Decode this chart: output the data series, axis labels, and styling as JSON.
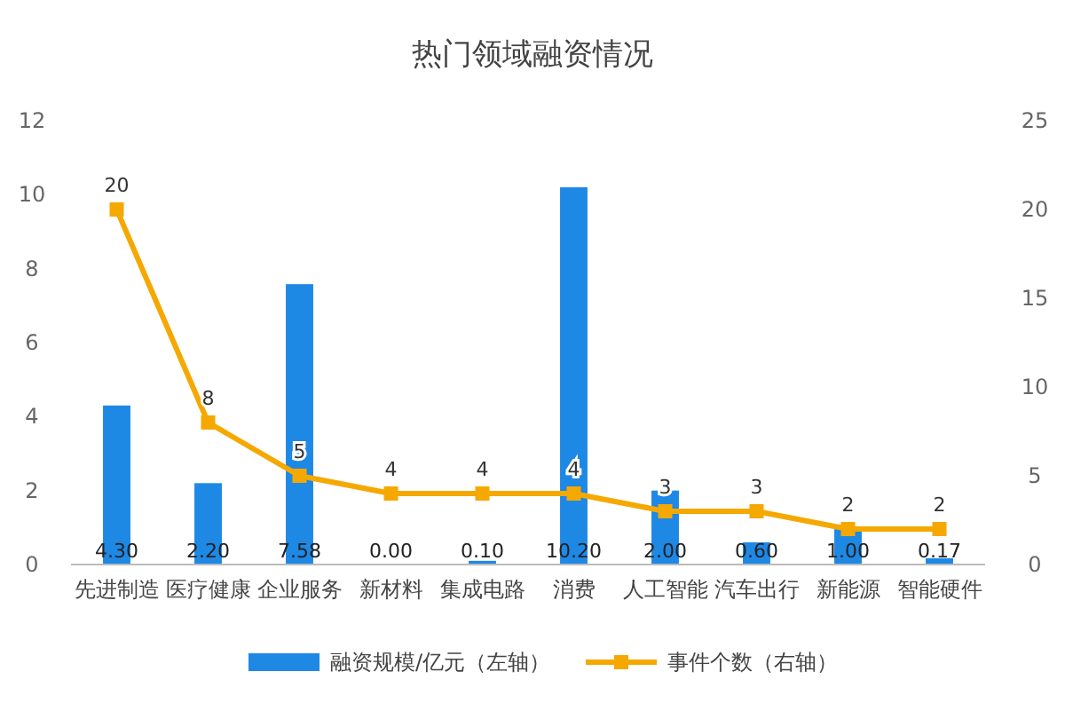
{
  "chart_data": {
    "type": "bar",
    "title": "热门领域融资情况",
    "categories": [
      "先进制造",
      "医疗健康",
      "企业服务",
      "新材料",
      "集成电路",
      "消费",
      "人工智能",
      "汽车出行",
      "新能源",
      "智能硬件"
    ],
    "series": [
      {
        "name": "融资规模/亿元（左轴）",
        "color": "#1e88e5",
        "values": [
          4.3,
          2.2,
          7.58,
          0,
          0.1,
          10.2,
          2,
          0.6,
          1,
          0.17
        ],
        "value_labels": [
          "4.30",
          "2.20",
          "7.58",
          "0.00",
          "0.10",
          "10.20",
          "2.00",
          "0.60",
          "1.00",
          "0.17"
        ]
      },
      {
        "name": "事件个数（右轴）",
        "type": "line",
        "axis": "y2",
        "color": "#f5a800",
        "marker": "square",
        "values": [
          20,
          8,
          5,
          4,
          4,
          4,
          3,
          3,
          2,
          2
        ],
        "value_labels": [
          "20",
          "8",
          "5",
          "4",
          "4",
          "4",
          "3",
          "3",
          "2",
          "2"
        ]
      }
    ],
    "ylim": [
      0,
      12
    ],
    "yticks": [
      0,
      2,
      4,
      6,
      8,
      10,
      12
    ],
    "y2lim": [
      0,
      25
    ],
    "y2ticks": [
      0,
      5,
      10,
      15,
      20,
      25
    ],
    "grid": false,
    "legend": "bottom"
  }
}
